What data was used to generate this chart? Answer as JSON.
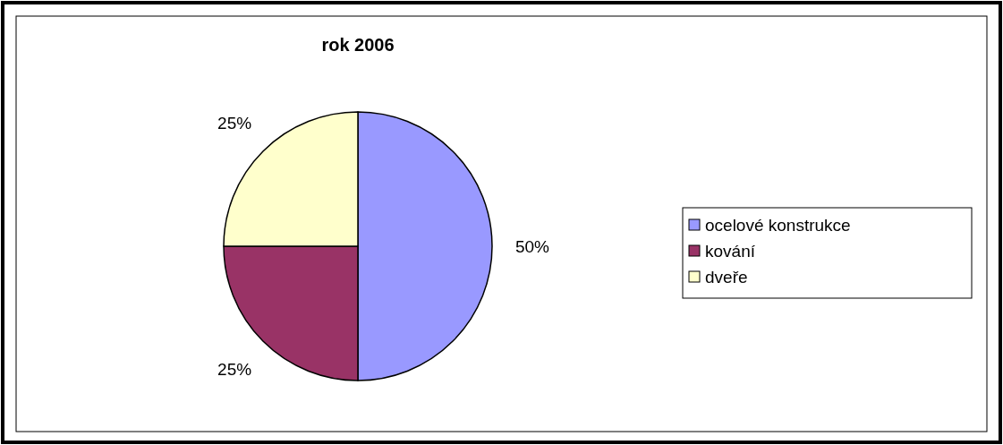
{
  "chart_data": {
    "type": "pie",
    "title": "rok 2006",
    "categories": [
      "ocelové konstrukce",
      "kování",
      "dveře"
    ],
    "values": [
      50,
      25,
      25
    ],
    "colors": [
      "#9999ff",
      "#993366",
      "#ffffcc"
    ],
    "value_labels": [
      "50%",
      "25%",
      "25%"
    ],
    "legend": "right"
  }
}
